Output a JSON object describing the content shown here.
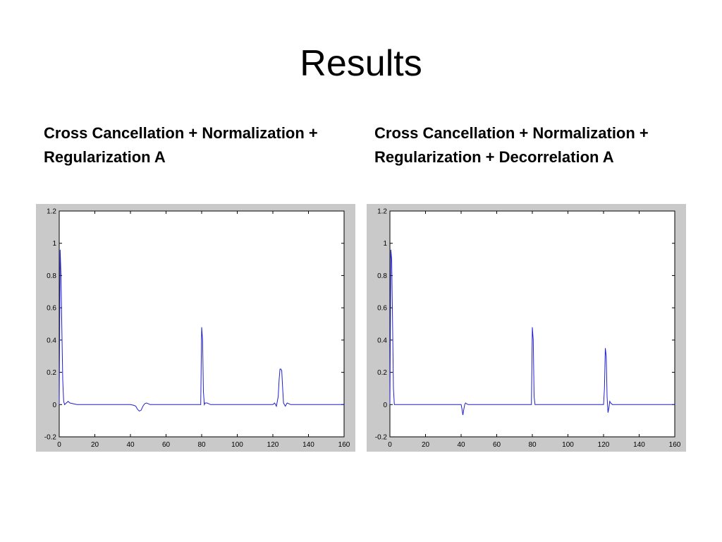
{
  "slide": {
    "title": "Results"
  },
  "panels": [
    {
      "caption_line1": "Cross Cancellation + Normalization +",
      "caption_line2": "Regularization A"
    },
    {
      "caption_line1": "Cross Cancellation + Normalization +",
      "caption_line2": "Regularization + Decorrelation A"
    }
  ],
  "chart_data": [
    {
      "type": "line",
      "title": "",
      "xlabel": "",
      "ylabel": "",
      "xlim": [
        0,
        160
      ],
      "ylim": [
        -0.2,
        1.2
      ],
      "xticks": [
        "0",
        "20",
        "40",
        "60",
        "80",
        "100",
        "120",
        "140",
        "160"
      ],
      "yticks": [
        "-0.2",
        "0",
        "0.2",
        "0.4",
        "0.6",
        "0.8",
        "1",
        "1.2"
      ],
      "grid": false,
      "line_color": "#1f1fd0",
      "series": [
        {
          "x": [
            0,
            0.5,
            1,
            1.5,
            2,
            2.5,
            3,
            4,
            5,
            6,
            10,
            40,
            42,
            43,
            44,
            45,
            46,
            47,
            48,
            49,
            50,
            51,
            52,
            79.5,
            80,
            80.5,
            81,
            81.5,
            82,
            83,
            84,
            85,
            120,
            121,
            122,
            123,
            123.5,
            124,
            124.5,
            125,
            125.5,
            126,
            127,
            128,
            129,
            130,
            160
          ],
          "y": [
            0,
            0.96,
            0.8,
            0.45,
            0.15,
            0.02,
            0,
            0.01,
            0.02,
            0.01,
            0,
            0,
            -0.005,
            -0.01,
            -0.03,
            -0.04,
            -0.035,
            -0.01,
            0.005,
            0.01,
            0.005,
            0,
            0,
            0,
            0.48,
            0.4,
            0.08,
            0,
            0.01,
            0.01,
            0.005,
            0,
            0,
            0.01,
            -0.01,
            0.05,
            0.15,
            0.22,
            0.22,
            0.21,
            0.1,
            0.01,
            -0.01,
            0.01,
            0.005,
            0,
            0
          ]
        }
      ]
    },
    {
      "type": "line",
      "title": "",
      "xlabel": "",
      "ylabel": "",
      "xlim": [
        0,
        160
      ],
      "ylim": [
        -0.2,
        1.2
      ],
      "xticks": [
        "0",
        "20",
        "40",
        "60",
        "80",
        "100",
        "120",
        "140",
        "160"
      ],
      "yticks": [
        "-0.2",
        "0",
        "0.2",
        "0.4",
        "0.6",
        "0.8",
        "1",
        "1.2"
      ],
      "grid": false,
      "line_color": "#1f1fd0",
      "series": [
        {
          "x": [
            0,
            0.5,
            1,
            1.5,
            2,
            2.5,
            3,
            40,
            40.5,
            41,
            41.5,
            42,
            42.5,
            43,
            44,
            45,
            79.5,
            80,
            80.5,
            81,
            81.5,
            82,
            120,
            120.5,
            121,
            121.5,
            122,
            122.5,
            123,
            123.5,
            124,
            125,
            160
          ],
          "y": [
            0,
            0.96,
            0.9,
            0.5,
            0.1,
            0,
            0,
            0,
            -0.03,
            -0.065,
            -0.03,
            0,
            0.01,
            0.005,
            0,
            0,
            0,
            0.48,
            0.4,
            0.05,
            0,
            0,
            0,
            0.1,
            0.35,
            0.3,
            0.05,
            -0.05,
            -0.02,
            0.02,
            0.01,
            0,
            0
          ]
        }
      ]
    }
  ]
}
